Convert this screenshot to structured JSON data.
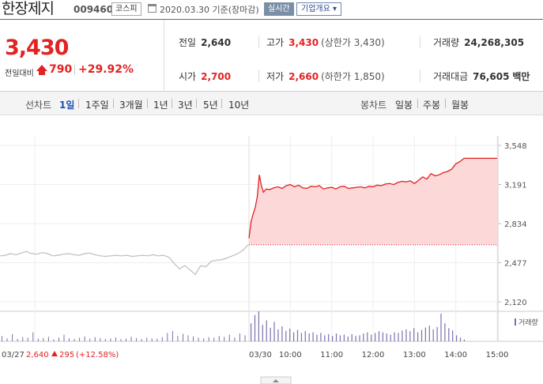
{
  "header": {
    "stock_name": "한장제지",
    "stock_code": "009460",
    "market": "코스피",
    "date": "2020.03.30",
    "date_suffix": "기준(장마감)",
    "realtime_label": "실시간",
    "overview_label": "기업개요",
    "overview_arrow": "▾"
  },
  "summary": {
    "price": "3,430",
    "change_label": "전일대비",
    "change_direction": "up-triangle-icon",
    "change_value": "790",
    "change_percent": "+29.92%",
    "prev_close_label": "전일",
    "prev_close": "2,640",
    "open_label": "시가",
    "open": "2,700",
    "high_label": "고가",
    "high": "3,430",
    "upper_limit_label": "(상한가",
    "upper_limit": "3,430)",
    "low_label": "저가",
    "low": "2,660",
    "lower_limit_label": "(하한가",
    "lower_limit": "1,850)",
    "volume_label": "거래량",
    "volume": "24,268,305",
    "value_label": "거래대금",
    "value": "76,605",
    "value_unit": "백만"
  },
  "period_bar": {
    "line_chart_label": "선차트",
    "line_options": [
      "1일",
      "1주일",
      "3개월",
      "1년",
      "3년",
      "5년",
      "10년"
    ],
    "active_option": "1일",
    "candle_chart_label": "봉차트",
    "candle_options": [
      "일봉",
      "주봉",
      "월봉"
    ]
  },
  "colors": {
    "accent_red": "#e32222",
    "active_blue": "#1e50b4",
    "prev_day_line": "#bdbdbd",
    "fill_red": "#fcd4d4",
    "volume_bar": "#7d6fae"
  },
  "chart_data": {
    "type": "line",
    "y_ticks": [
      "3,548",
      "3,191",
      "2,834",
      "2,477",
      "2,120"
    ],
    "y_tick_values": [
      3548,
      3191,
      2834,
      2477,
      2120
    ],
    "ylim": [
      2120,
      3548
    ],
    "reference_price": 2640,
    "volume_legend": "거래량",
    "x_ticks": [
      "03/30",
      "10:00",
      "11:00",
      "12:00",
      "13:00",
      "14:00",
      "15:00"
    ],
    "x_tick_minutes": [
      0,
      60,
      120,
      180,
      240,
      300,
      360
    ],
    "prev_day": {
      "date": "03/27",
      "close": "2,640",
      "change": "295",
      "change_percent": "(+12.58%)",
      "prices": [
        2540,
        2545,
        2560,
        2550,
        2565,
        2580,
        2560,
        2555,
        2570,
        2560,
        2540,
        2545,
        2555,
        2560,
        2550,
        2545,
        2560,
        2565,
        2550,
        2540,
        2535,
        2540,
        2545,
        2540,
        2545,
        2535,
        2540,
        2545,
        2540,
        2550,
        2540,
        2545,
        2525,
        2470,
        2420,
        2450,
        2410,
        2370,
        2450,
        2440,
        2490,
        2500,
        2505,
        2520,
        2540,
        2560,
        2590,
        2640
      ]
    },
    "today": {
      "minutes": [
        0,
        3,
        6,
        9,
        12,
        15,
        18,
        21,
        25,
        30,
        36,
        42,
        48,
        54,
        60,
        66,
        72,
        78,
        84,
        90,
        96,
        102,
        108,
        114,
        120,
        126,
        132,
        138,
        144,
        150,
        156,
        162,
        168,
        174,
        180,
        186,
        192,
        198,
        204,
        210,
        216,
        222,
        228,
        234,
        240,
        246,
        252,
        258,
        264,
        270,
        276,
        282,
        288,
        294,
        300,
        306,
        312,
        318,
        324,
        330,
        336,
        342,
        348,
        354,
        360
      ],
      "prices": [
        2700,
        2850,
        2920,
        2980,
        3080,
        3280,
        3180,
        3120,
        3150,
        3145,
        3160,
        3170,
        3155,
        3180,
        3190,
        3170,
        3185,
        3160,
        3155,
        3175,
        3170,
        3180,
        3150,
        3160,
        3165,
        3150,
        3170,
        3175,
        3155,
        3160,
        3165,
        3170,
        3160,
        3175,
        3170,
        3185,
        3180,
        3195,
        3200,
        3190,
        3210,
        3220,
        3215,
        3225,
        3200,
        3230,
        3260,
        3240,
        3290,
        3270,
        3280,
        3300,
        3310,
        3330,
        3380,
        3400,
        3430,
        3430,
        3430,
        3430,
        3430,
        3430,
        3430,
        3430,
        3430
      ]
    },
    "prev_volume": [
      18,
      10,
      24,
      8,
      14,
      12,
      30,
      9,
      11,
      15,
      7,
      13,
      22,
      10,
      8,
      12,
      16,
      9,
      14,
      11,
      8,
      10,
      13,
      7,
      9,
      15,
      11,
      8,
      12,
      10,
      9,
      14,
      28,
      34,
      18,
      25,
      20,
      16,
      12,
      10,
      14,
      12,
      18,
      15,
      22,
      12,
      26,
      20
    ],
    "today_volume": [
      60,
      88,
      100,
      55,
      70,
      45,
      65,
      40,
      50,
      35,
      42,
      30,
      38,
      28,
      34,
      26,
      30,
      22,
      28,
      20,
      24,
      18,
      26,
      20,
      22,
      16,
      24,
      18,
      20,
      26,
      30,
      22,
      28,
      34,
      30,
      26,
      22,
      30,
      28,
      36,
      40,
      34,
      44,
      30,
      38,
      46,
      52,
      40,
      48,
      92,
      60,
      44,
      36,
      20,
      12,
      6
    ]
  }
}
